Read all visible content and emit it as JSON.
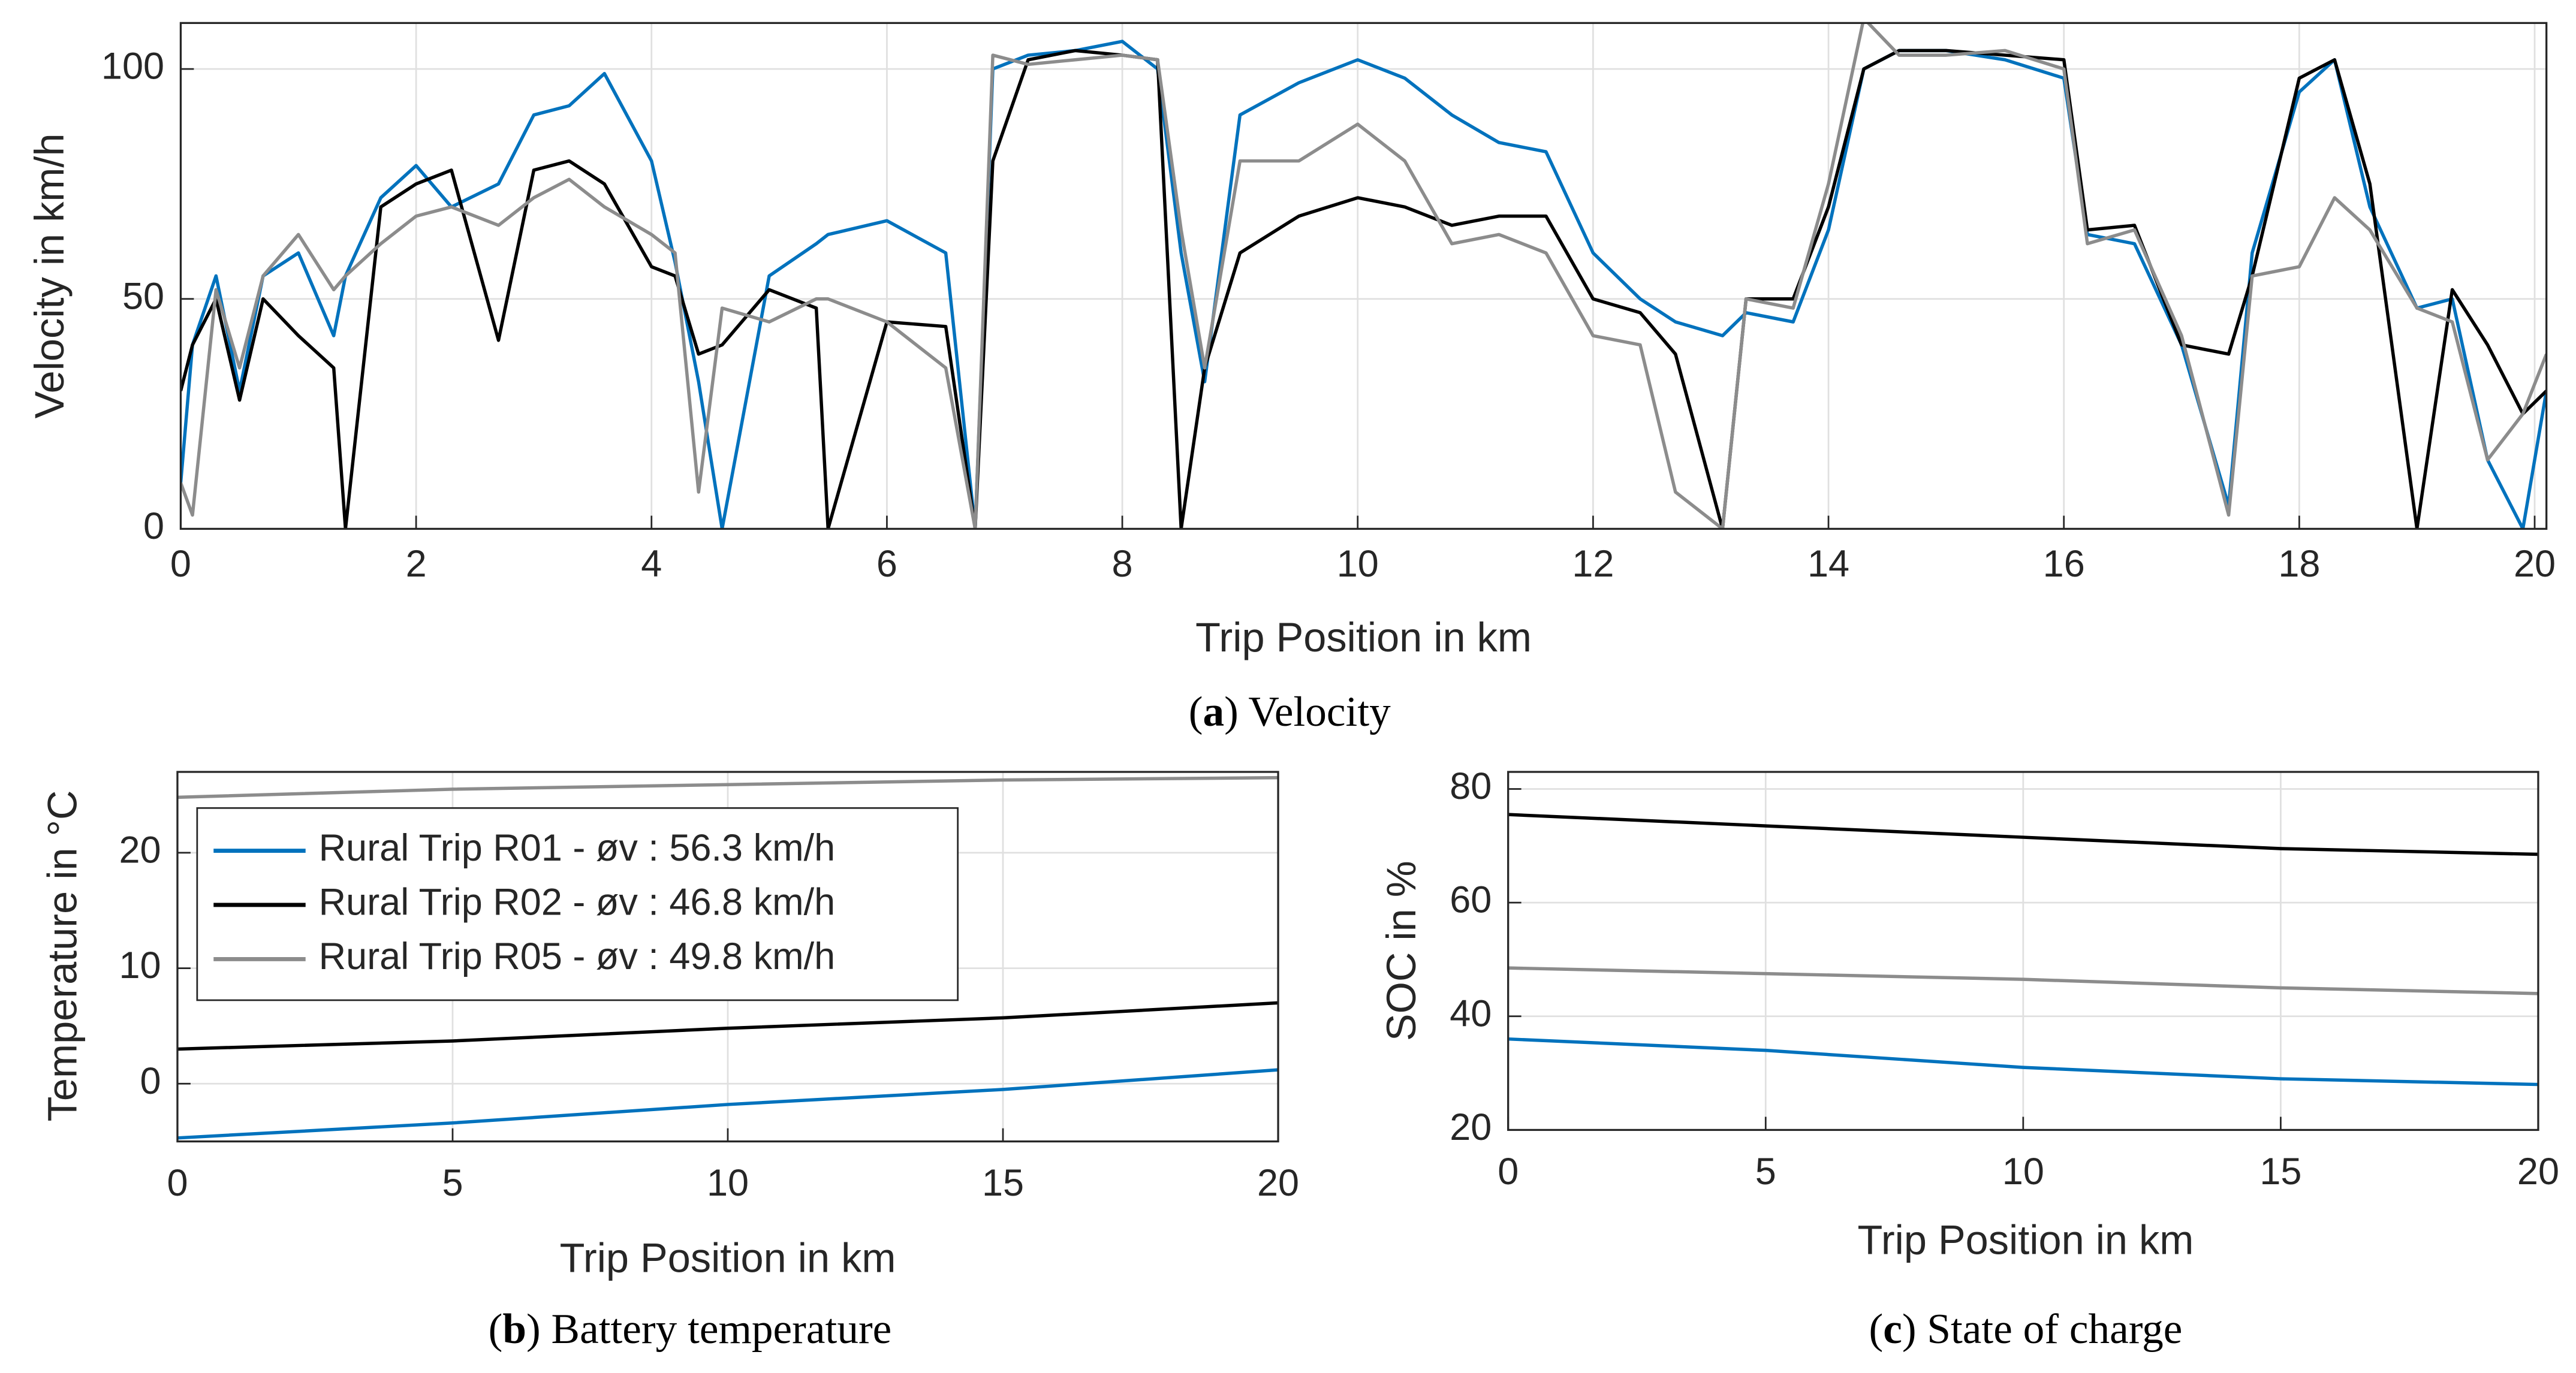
{
  "chart_data": [
    {
      "type": "line",
      "xlabel": "Trip Position in km",
      "ylabel": "Velocity in km/h",
      "caption": [
        "(",
        "a",
        ") Velocity"
      ],
      "x": [
        0,
        0.1,
        0.3,
        0.5,
        0.7,
        1.0,
        1.3,
        1.4,
        1.7,
        2.0,
        2.3,
        2.7,
        3.0,
        3.3,
        3.6,
        4.0,
        4.2,
        4.4,
        4.6,
        5.0,
        5.4,
        5.5,
        6.0,
        6.5,
        6.75,
        6.9,
        7.2,
        7.6,
        8.0,
        8.3,
        8.5,
        8.7,
        9.0,
        9.5,
        10.0,
        10.4,
        10.8,
        11.2,
        11.6,
        12.0,
        12.4,
        12.7,
        13.1,
        13.3,
        13.7,
        14.0,
        14.3,
        14.6,
        15.0,
        15.5,
        16.0,
        16.2,
        16.6,
        17.0,
        17.4,
        17.6,
        18.0,
        18.3,
        18.6,
        19.0,
        19.3,
        19.6,
        19.9,
        20.1
      ],
      "series": [
        {
          "color": "#0072bd",
          "values": [
            10,
            40,
            55,
            30,
            55,
            60,
            42,
            55,
            72,
            79,
            70,
            75,
            90,
            92,
            99,
            80,
            58,
            32,
            0,
            55,
            62,
            64,
            67,
            60,
            0,
            100,
            103,
            104,
            106,
            100,
            60,
            32,
            90,
            97,
            102,
            98,
            90,
            84,
            82,
            60,
            50,
            45,
            42,
            47,
            45,
            65,
            100,
            104,
            104,
            102,
            98,
            64,
            62,
            40,
            5,
            60,
            95,
            102,
            70,
            48,
            50,
            15,
            0,
            30
          ]
        },
        {
          "color": "#000000",
          "values": [
            30,
            40,
            50,
            28,
            50,
            42,
            35,
            0,
            70,
            75,
            78,
            41,
            78,
            80,
            75,
            57,
            55,
            38,
            40,
            52,
            48,
            0,
            45,
            44,
            0,
            80,
            102,
            104,
            103,
            102,
            0,
            35,
            60,
            68,
            72,
            70,
            66,
            68,
            68,
            50,
            47,
            38,
            0,
            50,
            50,
            70,
            100,
            104,
            104,
            103,
            102,
            65,
            66,
            40,
            38,
            55,
            98,
            102,
            75,
            0,
            52,
            40,
            25,
            30
          ]
        },
        {
          "color": "#8c8c8c",
          "values": [
            10,
            3,
            52,
            35,
            55,
            64,
            52,
            55,
            62,
            68,
            70,
            66,
            72,
            76,
            70,
            64,
            60,
            8,
            48,
            45,
            50,
            50,
            45,
            35,
            0,
            103,
            101,
            102,
            103,
            102,
            65,
            35,
            80,
            80,
            88,
            80,
            62,
            64,
            60,
            42,
            40,
            8,
            0,
            50,
            48,
            75,
            111,
            103,
            103,
            104,
            100,
            62,
            65,
            42,
            3,
            55,
            57,
            72,
            65,
            48,
            45,
            15,
            25,
            38
          ]
        }
      ],
      "xlim": [
        0,
        20.1
      ],
      "ylim": [
        0,
        110
      ],
      "xticks": [
        0,
        2,
        4,
        6,
        8,
        10,
        12,
        14,
        16,
        18,
        20
      ],
      "yticks": [
        0,
        50,
        100
      ],
      "grid": true
    },
    {
      "type": "line",
      "xlabel": "Trip Position in km",
      "ylabel": "Temperature in °C",
      "caption": [
        "(",
        "b",
        ") Battery temperature"
      ],
      "x": [
        0,
        5,
        10,
        15,
        20
      ],
      "series": [
        {
          "name": "Rural Trip R01 - øv : 56.3 km/h",
          "color": "#0072bd",
          "values": [
            -4.7,
            -3.4,
            -1.8,
            -0.5,
            1.2
          ]
        },
        {
          "name": "Rural Trip R02 - øv : 46.8 km/h",
          "color": "#000000",
          "values": [
            3,
            3.7,
            4.8,
            5.7,
            7
          ]
        },
        {
          "name": "Rural Trip R05 - øv : 49.8 km/h",
          "color": "#8c8c8c",
          "values": [
            24.8,
            25.5,
            25.9,
            26.3,
            26.5
          ]
        }
      ],
      "xlim": [
        0,
        20
      ],
      "ylim": [
        -5,
        27
      ],
      "xticks": [
        0,
        5,
        10,
        15,
        20
      ],
      "yticks": [
        0,
        10,
        20
      ],
      "grid": true,
      "legend": "upper left"
    },
    {
      "type": "line",
      "xlabel": "Trip Position in km",
      "ylabel": "SOC in %",
      "caption": [
        "(",
        "c",
        ") State of charge"
      ],
      "x": [
        0,
        5,
        10,
        15,
        20
      ],
      "series": [
        {
          "color": "#0072bd",
          "values": [
            36,
            34,
            31,
            29,
            28
          ]
        },
        {
          "color": "#000000",
          "values": [
            75.5,
            73.5,
            71.5,
            69.5,
            68.5
          ]
        },
        {
          "color": "#8c8c8c",
          "values": [
            48.5,
            47.5,
            46.5,
            45,
            44
          ]
        }
      ],
      "xlim": [
        0,
        20
      ],
      "ylim": [
        20,
        83
      ],
      "xticks": [
        0,
        5,
        10,
        15,
        20
      ],
      "yticks": [
        20,
        40,
        60,
        80
      ],
      "grid": true
    }
  ]
}
